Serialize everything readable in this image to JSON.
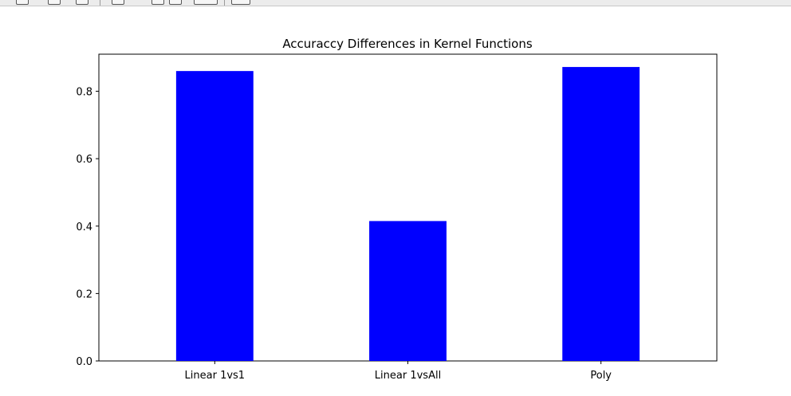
{
  "toolbar": {
    "icons": [
      "home-icon",
      "back-icon",
      "forward-icon",
      "pan-icon",
      "zoom-icon",
      "configure-icon",
      "save-icon"
    ]
  },
  "chart_data": {
    "type": "bar",
    "title": "Accuraccy Differences in Kernel Functions",
    "xlabel": "",
    "ylabel": "",
    "categories": [
      "Linear 1vs1",
      "Linear 1vsAll",
      "Poly"
    ],
    "values": [
      0.86,
      0.415,
      0.872
    ],
    "ylim": [
      0,
      0.91
    ],
    "yticks": [
      0.0,
      0.2,
      0.4,
      0.6,
      0.8
    ],
    "ytick_labels": [
      "0.0",
      "0.2",
      "0.4",
      "0.6",
      "0.8"
    ],
    "bar_color": "#0000ff",
    "grid": false,
    "legend": "none"
  }
}
